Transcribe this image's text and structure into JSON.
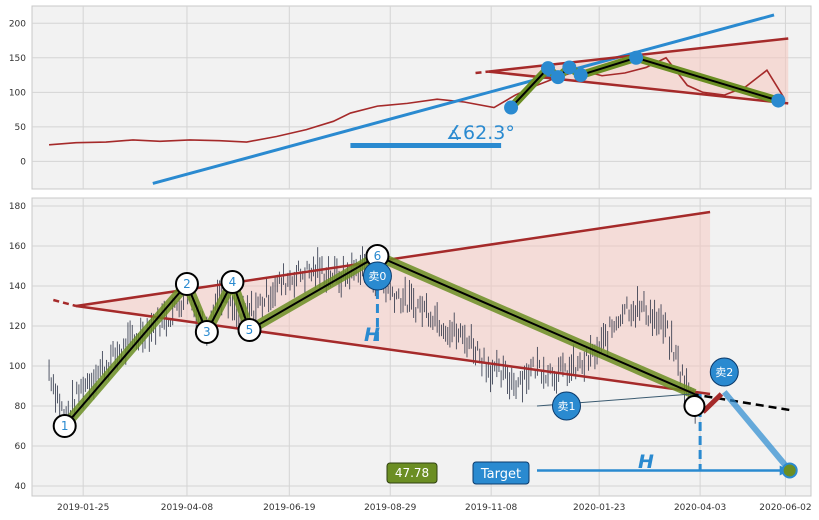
{
  "chart_data": [
    {
      "type": "line",
      "panel": "top",
      "ylim": [
        -40,
        225
      ],
      "xlim": [
        "2018-12-20",
        "2020-06-20"
      ],
      "yticks": [
        0,
        50,
        100,
        150,
        200
      ],
      "grid": true,
      "series": [
        {
          "role": "price",
          "color": "#a52a2a",
          "x": [
            "2019-01-01",
            "2019-01-20",
            "2019-02-10",
            "2019-03-01",
            "2019-03-20",
            "2019-04-10",
            "2019-05-01",
            "2019-05-20",
            "2019-06-10",
            "2019-07-01",
            "2019-07-20",
            "2019-08-01",
            "2019-08-20",
            "2019-09-10",
            "2019-10-01",
            "2019-10-20",
            "2019-11-10",
            "2019-11-25",
            "2019-12-10",
            "2019-12-25",
            "2020-01-10",
            "2020-01-25",
            "2020-02-10",
            "2020-02-25",
            "2020-03-10",
            "2020-03-25",
            "2020-04-05",
            "2020-04-20",
            "2020-05-05",
            "2020-05-20",
            "2020-06-01"
          ],
          "values": [
            24,
            27,
            28,
            31,
            29,
            31,
            30,
            28,
            36,
            46,
            58,
            70,
            80,
            84,
            90,
            86,
            78,
            96,
            110,
            122,
            132,
            124,
            128,
            136,
            150,
            110,
            100,
            96,
            108,
            132,
            92
          ]
        },
        {
          "role": "trend-up",
          "color": "#2a8ad0",
          "x": [
            "2019-03-15",
            "2020-05-25"
          ],
          "values": [
            -32,
            212
          ]
        },
        {
          "role": "resistance",
          "color": "#a52a2a",
          "x": [
            "2019-11-06",
            "2020-06-04"
          ],
          "values": [
            130,
            178
          ]
        },
        {
          "role": "support",
          "color": "#a52a2a",
          "x": [
            "2019-11-06",
            "2020-06-04"
          ],
          "values": [
            130,
            84
          ]
        }
      ],
      "markers": [
        {
          "x": "2019-11-22",
          "y": 78
        },
        {
          "x": "2019-12-18",
          "y": 135
        },
        {
          "x": "2019-12-25",
          "y": 122
        },
        {
          "x": "2020-01-02",
          "y": 136
        },
        {
          "x": "2020-01-10",
          "y": 125
        },
        {
          "x": "2020-02-18",
          "y": 150
        },
        {
          "x": "2020-05-28",
          "y": 88
        }
      ],
      "annotations": {
        "angle": "∡62.3°"
      }
    },
    {
      "type": "line",
      "panel": "bottom",
      "ylim": [
        35,
        184
      ],
      "xlim": [
        "2018-12-20",
        "2020-06-20"
      ],
      "yticks": [
        40,
        60,
        80,
        100,
        120,
        140,
        160,
        180
      ],
      "xticks": [
        "2019-01-25",
        "2019-04-08",
        "2019-06-19",
        "2019-08-29",
        "2019-11-08",
        "2020-01-23",
        "2020-04-03",
        "2020-06-02"
      ],
      "grid": true,
      "series": [
        {
          "role": "price",
          "color": "#2b3245",
          "x": [
            "2019-01-01",
            "2019-01-12",
            "2019-01-25",
            "2019-02-15",
            "2019-03-10",
            "2019-03-28",
            "2019-04-08",
            "2019-04-20",
            "2019-05-01",
            "2019-05-15",
            "2019-05-25",
            "2019-06-10",
            "2019-06-25",
            "2019-07-10",
            "2019-07-25",
            "2019-08-10",
            "2019-08-25",
            "2019-09-10",
            "2019-09-25",
            "2019-10-10",
            "2019-10-25",
            "2019-11-08",
            "2019-11-25",
            "2019-12-10",
            "2019-12-25",
            "2020-01-10",
            "2020-01-23",
            "2020-02-10",
            "2020-02-25",
            "2020-03-10",
            "2020-03-25",
            "2020-04-01"
          ],
          "values": [
            98,
            74,
            90,
            104,
            118,
            126,
            137,
            118,
            138,
            124,
            128,
            140,
            146,
            148,
            144,
            150,
            140,
            132,
            128,
            118,
            112,
            98,
            92,
            100,
            96,
            100,
            108,
            130,
            128,
            118,
            88,
            80
          ]
        },
        {
          "role": "resistance",
          "color": "#a52a2a",
          "x": [
            "2019-01-20",
            "2020-04-10"
          ],
          "values": [
            130,
            177
          ]
        },
        {
          "role": "support",
          "color": "#a52a2a",
          "x": [
            "2019-01-20",
            "2020-04-10"
          ],
          "values": [
            130,
            86
          ]
        },
        {
          "role": "projection",
          "color": "#000000",
          "x": [
            "2020-03-28",
            "2020-06-05"
          ],
          "values": [
            86,
            78
          ]
        }
      ],
      "waves": [
        {
          "label": "1",
          "x": "2019-01-12",
          "y": 70
        },
        {
          "label": "2",
          "x": "2019-04-08",
          "y": 141
        },
        {
          "label": "3",
          "x": "2019-04-22",
          "y": 117
        },
        {
          "label": "4",
          "x": "2019-05-10",
          "y": 142
        },
        {
          "label": "5",
          "x": "2019-05-22",
          "y": 118
        },
        {
          "label": "6",
          "x": "2019-08-20",
          "y": 155
        }
      ],
      "sells": [
        {
          "label": "卖0",
          "x": "2019-08-20",
          "y": 145
        },
        {
          "label": "卖1",
          "x": "2019-12-31",
          "y": 80
        },
        {
          "label": "卖2",
          "x": "2020-04-20",
          "y": 97
        }
      ],
      "target": {
        "label": "Target",
        "value_label": "47.78",
        "y": 47.78,
        "x_end": "2020-06-05"
      },
      "height_label": "H"
    }
  ]
}
